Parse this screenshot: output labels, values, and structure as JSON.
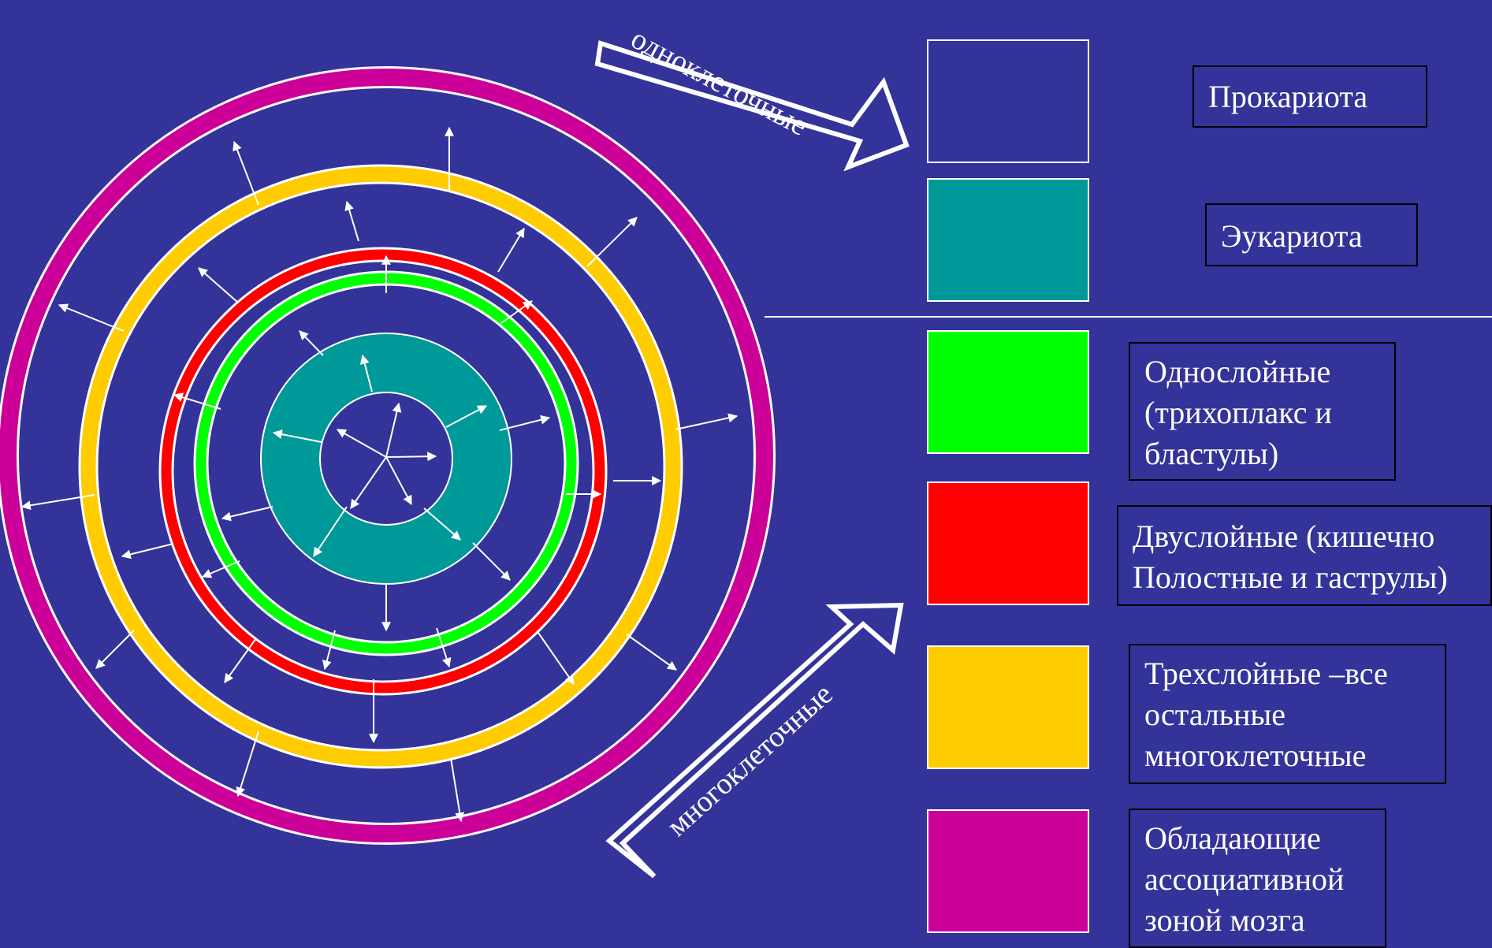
{
  "arrows": {
    "unicellular": "одноклеточные",
    "multicellular": "многоклеточные"
  },
  "legend": [
    {
      "label": "Прокариота",
      "color": "#333399"
    },
    {
      "label": "Эукариота",
      "color": "#009999"
    },
    {
      "label": "Однослойные\n(трихоплакс и\nбластулы)",
      "color": "#00ff00"
    },
    {
      "label": "Двуслойные (кишечно\nПолостные и гаструлы)",
      "color": "#ff0000"
    },
    {
      "label": "Трехслойные –все\nостальные\n многоклеточные",
      "color": "#ffcc00"
    },
    {
      "label": "Обладающие\nассоциативной\nзоной мозга",
      "color": "#cc0099"
    }
  ],
  "colors": {
    "background": "#333399",
    "stroke": "#ffffff"
  }
}
